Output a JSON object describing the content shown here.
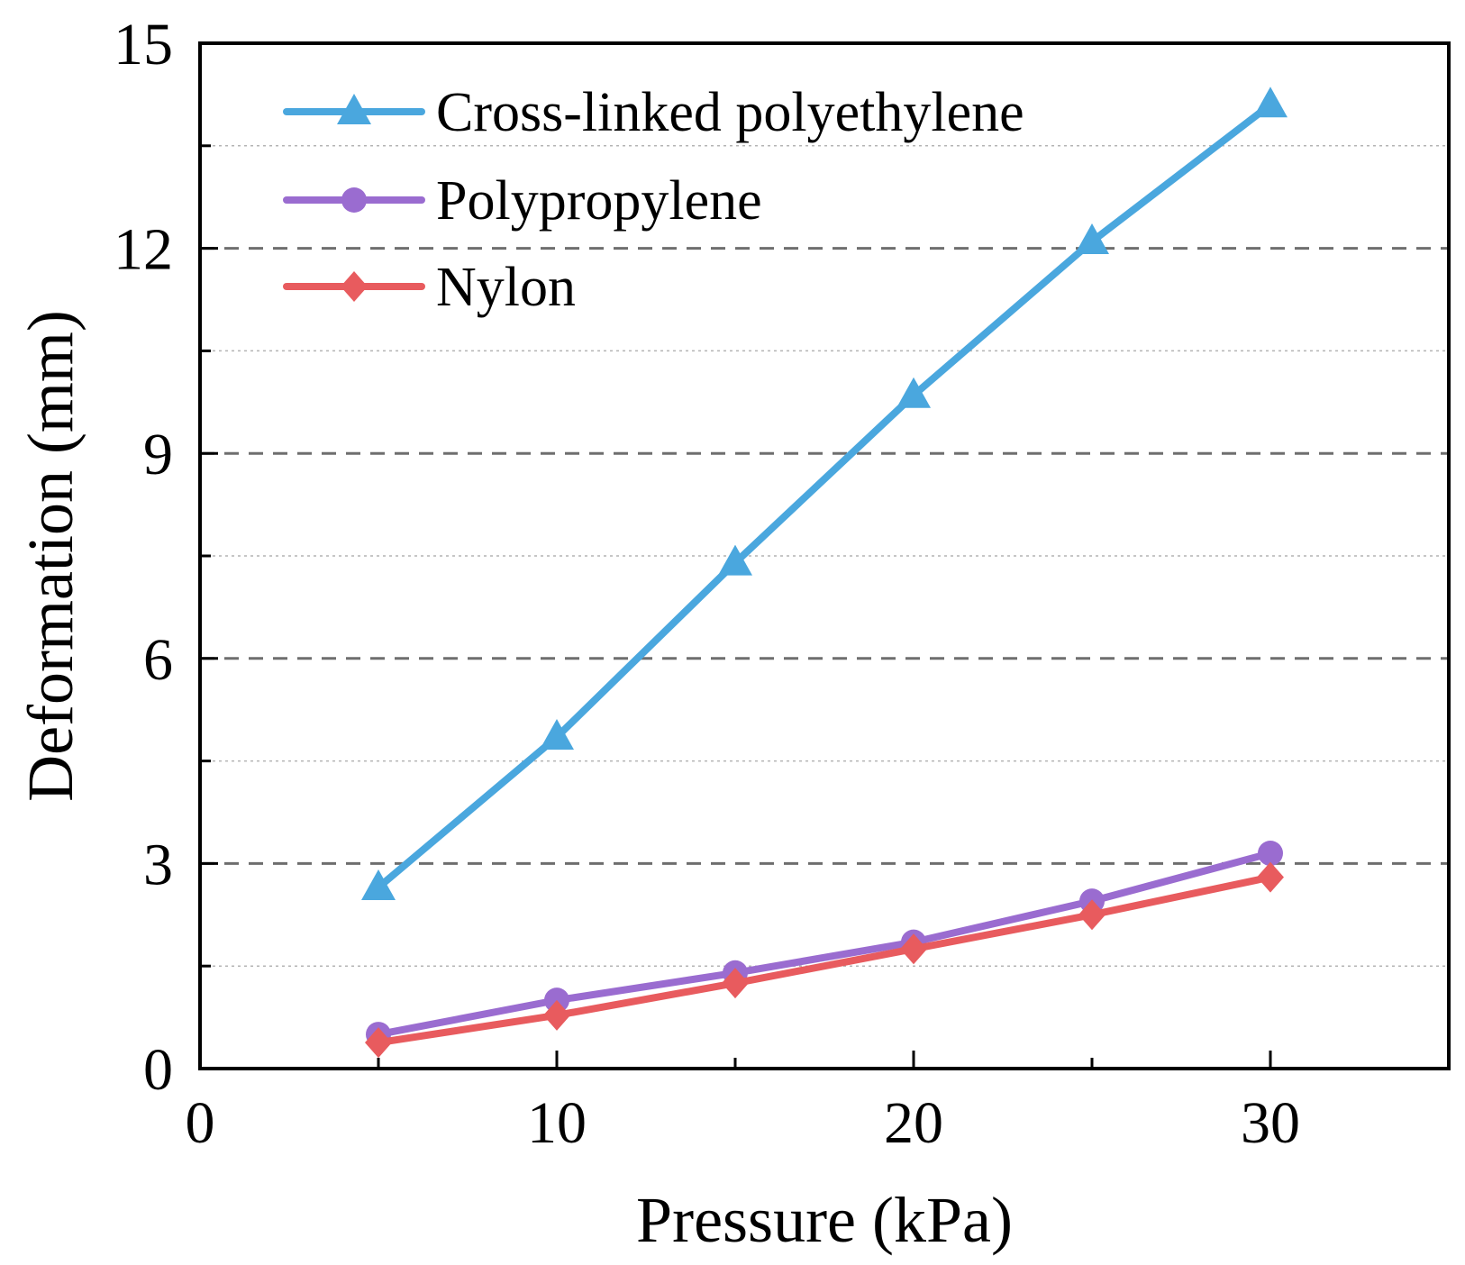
{
  "chart_data": {
    "type": "line",
    "title": "",
    "xlabel": "Pressure (kPa)",
    "ylabel": "Deformation (mm)",
    "xlim": [
      0,
      35
    ],
    "ylim": [
      0,
      15
    ],
    "xticks": [
      0,
      10,
      20,
      30
    ],
    "xtick_labels": [
      "0",
      "10",
      "20",
      "30"
    ],
    "yticks": [
      0,
      3,
      6,
      9,
      12,
      15
    ],
    "ytick_labels": [
      "0",
      "3",
      "6",
      "9",
      "12",
      "15"
    ],
    "grid": true,
    "legend_position": "top-left",
    "x": [
      5,
      10,
      15,
      20,
      25,
      30
    ],
    "series": [
      {
        "name": "Cross-linked polyethylene",
        "marker": "triangle",
        "color": "#4aa7de",
        "values": [
          2.65,
          4.85,
          7.4,
          9.85,
          12.1,
          14.1
        ]
      },
      {
        "name": "Polypropylene",
        "marker": "circle",
        "color": "#9a6cd0",
        "values": [
          0.5,
          1.0,
          1.4,
          1.85,
          2.45,
          3.15
        ]
      },
      {
        "name": "Nylon",
        "marker": "diamond",
        "color": "#e85b5e",
        "values": [
          0.38,
          0.78,
          1.25,
          1.75,
          2.25,
          2.8
        ]
      }
    ]
  }
}
